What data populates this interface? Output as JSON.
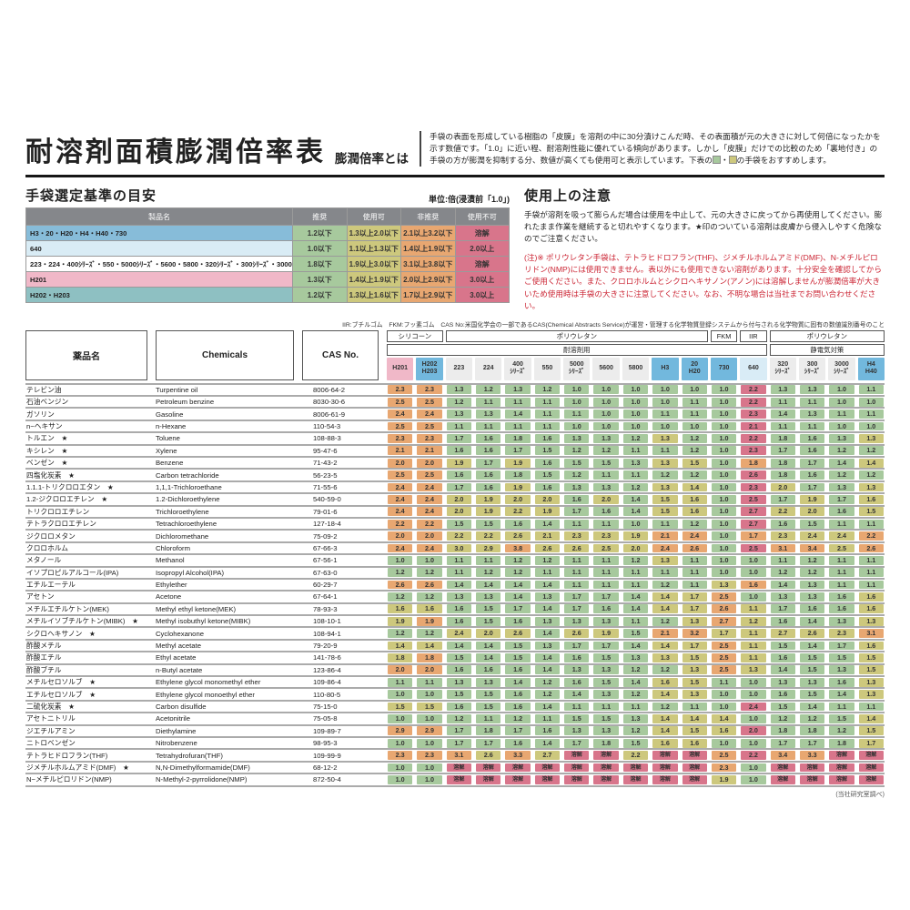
{
  "header": {
    "title": "耐溶剤面積膨潤倍率表",
    "subtitle": "膨潤倍率とは",
    "desc_part1": "手袋の表面を形成している樹脂の「皮膜」を溶剤の中に30分漬けこんだ時、その表面積が元の大きさに対して何倍になったかを示す数値です。「1.0」に近い程、耐溶剤性能に優れている傾向があります。しかし「皮膜」だけでの比較のため「裏地付き」の手袋の方が膨潤を抑制する分、数値が高くても使用可と表示しています。下表の",
    "desc_sep": "・",
    "desc_part2": "の手袋をおすすめします。"
  },
  "criteria": {
    "heading": "手袋選定基準の目安",
    "unit_label": "単位:倍(浸漬前「1.0」)",
    "headers": [
      "製品名",
      "推奨",
      "使用可",
      "非推奨",
      "使用不可"
    ],
    "rows": [
      {
        "name": "H3・20・H20・H4・H40・730",
        "name_bg": "#87bcd9",
        "values": [
          "1.2以下",
          "1.3以上2.0以下",
          "2.1以上3.2以下",
          "溶解"
        ]
      },
      {
        "name": "640",
        "name_bg": "#d9ecf5",
        "values": [
          "1.0以下",
          "1.1以上1.3以下",
          "1.4以上1.9以下",
          "2.0以上"
        ]
      },
      {
        "name": "223・224・400ｼﾘｰｽﾞ・550・5000ｼﾘｰｽﾞ・5600・5800・320ｼﾘｰｽﾞ・300ｼﾘｰｽﾞ・3000ｼﾘｰｽﾞ",
        "name_bg": "#ffffff",
        "values": [
          "1.8以下",
          "1.9以上3.0以下",
          "3.1以上3.8以下",
          "溶解"
        ]
      },
      {
        "name": "H201",
        "name_bg": "#f0b8c8",
        "values": [
          "1.3以下",
          "1.4以上1.9以下",
          "2.0以上2.9以下",
          "3.0以上"
        ]
      },
      {
        "name": "H202・H203",
        "name_bg": "#8ec0c2",
        "values": [
          "1.2以下",
          "1.3以上1.6以下",
          "1.7以上2.9以下",
          "3.0以上"
        ]
      }
    ]
  },
  "notice": {
    "heading": "使用上の注意",
    "text": "手袋が溶剤を吸って膨らんだ場合は使用を中止して、元の大きさに戻ってから再使用してください。膨れたまま作業を継続すると切れやすくなります。★印のついている溶剤は皮膚から侵入しやすく危険なのでご注意ください。",
    "warning": "(注)※ ポリウレタン手袋は、テトラヒドロフラン(THF)、ジメチルホルムアミド(DMF)、N-メチルピロリドン(NMP)には使用できません。表以外にも使用できない溶剤があります。十分安全を確認してからご使用ください。また、クロロホルムとシクロヘキサノン(アノン)には溶解しませんが膨潤倍率が大きいため使用時は手袋の大きさに注意してください。なお、不明な場合は当社までお問い合わせください。"
  },
  "abbrev_note": "IIR:ブチルゴム　FKM:フッ素ゴム　CAS No:米国化学会の一部であるCAS(Chemical Abstracts Service)が運営・管理する化学物質登録システムから付与される化学物質に固有の数値識別番号のこと",
  "table": {
    "left_headers": [
      "薬品名",
      "Chemicals",
      "CAS No."
    ],
    "material_bands": [
      {
        "label": "シリコーン",
        "span": 2
      },
      {
        "label": "ポリウレタン",
        "span": 9
      },
      {
        "label": "FKM",
        "span": 1
      },
      {
        "label": "IIR",
        "span": 1
      },
      {
        "label": "ポリウレタン",
        "span": 4
      }
    ],
    "usage_bands": [
      {
        "label": "耐溶剤用",
        "span": 13
      },
      {
        "label": "静電気対策",
        "span": 4
      }
    ],
    "columns": [
      {
        "label": "H201",
        "bg": "#f0b8c8",
        "grade": "h201"
      },
      {
        "label": "H202\nH203",
        "bg": "#72b8dd",
        "grade": "h202"
      },
      {
        "label": "223",
        "bg": "#ececec",
        "grade": "std"
      },
      {
        "label": "224",
        "bg": "#ececec",
        "grade": "std"
      },
      {
        "label": "400\nｼﾘｰｽﾞ",
        "bg": "#ececec",
        "grade": "std"
      },
      {
        "label": "550",
        "bg": "#ececec",
        "grade": "std"
      },
      {
        "label": "5000\nｼﾘｰｽﾞ",
        "bg": "#ececec",
        "grade": "std"
      },
      {
        "label": "5600",
        "bg": "#ececec",
        "grade": "std"
      },
      {
        "label": "5800",
        "bg": "#ececec",
        "grade": "std"
      },
      {
        "label": "H3",
        "bg": "#72b8dd",
        "grade": "blue"
      },
      {
        "label": "20\nH20",
        "bg": "#72b8dd",
        "grade": "blue"
      },
      {
        "label": "730",
        "bg": "#72b8dd",
        "grade": "blue"
      },
      {
        "label": "640",
        "bg": "#d9ecf6",
        "grade": "g640"
      },
      {
        "label": "320\nｼﾘｰｽﾞ",
        "bg": "#ececec",
        "grade": "std"
      },
      {
        "label": "300\nｼﾘｰｽﾞ",
        "bg": "#ececec",
        "grade": "std"
      },
      {
        "label": "3000\nｼﾘｰｽﾞ",
        "bg": "#ececec",
        "grade": "std"
      },
      {
        "label": "H4\nH40",
        "bg": "#72b8dd",
        "grade": "blue"
      }
    ],
    "grades": {
      "h201": [
        1.3,
        1.9,
        2.9
      ],
      "h202": [
        1.2,
        1.6,
        2.9
      ],
      "std": [
        1.8,
        3.0,
        3.8
      ],
      "blue": [
        1.2,
        2.0,
        3.2
      ],
      "g640": [
        1.0,
        1.3,
        1.9
      ]
    },
    "legend_colors": {
      "green": "#a7c99d",
      "yellow": "#cdc87d",
      "orange": "#e8a771",
      "red": "#d8758b"
    },
    "rows": [
      {
        "name": "テレビン油",
        "star": false,
        "chemical": "Turpentine oil",
        "cas": "8006-64-2",
        "values": [
          "2.3",
          "2.3",
          "1.3",
          "1.2",
          "1.3",
          "1.2",
          "1.0",
          "1.0",
          "1.0",
          "1.0",
          "1.0",
          "1.0",
          "2.2",
          "1.3",
          "1.3",
          "1.0",
          "1.1"
        ]
      },
      {
        "name": "石油ベンジン",
        "star": false,
        "chemical": "Petroleum benzine",
        "cas": "8030-30-6",
        "values": [
          "2.5",
          "2.5",
          "1.2",
          "1.1",
          "1.1",
          "1.1",
          "1.0",
          "1.0",
          "1.0",
          "1.0",
          "1.1",
          "1.0",
          "2.2",
          "1.1",
          "1.1",
          "1.0",
          "1.0"
        ]
      },
      {
        "name": "ガソリン",
        "star": false,
        "chemical": "Gasoline",
        "cas": "8006-61-9",
        "values": [
          "2.4",
          "2.4",
          "1.3",
          "1.3",
          "1.4",
          "1.1",
          "1.1",
          "1.0",
          "1.0",
          "1.1",
          "1.1",
          "1.0",
          "2.3",
          "1.4",
          "1.3",
          "1.1",
          "1.1"
        ]
      },
      {
        "name": "n−ヘキサン",
        "star": false,
        "chemical": "n-Hexane",
        "cas": "110-54-3",
        "values": [
          "2.5",
          "2.5",
          "1.1",
          "1.1",
          "1.1",
          "1.1",
          "1.0",
          "1.0",
          "1.0",
          "1.0",
          "1.0",
          "1.0",
          "2.1",
          "1.1",
          "1.1",
          "1.0",
          "1.0"
        ]
      },
      {
        "name": "トルエン",
        "star": true,
        "chemical": "Toluene",
        "cas": "108-88-3",
        "values": [
          "2.3",
          "2.3",
          "1.7",
          "1.6",
          "1.8",
          "1.6",
          "1.3",
          "1.3",
          "1.2",
          "1.3",
          "1.2",
          "1.0",
          "2.2",
          "1.8",
          "1.6",
          "1.3",
          "1.3"
        ]
      },
      {
        "name": "キシレン",
        "star": true,
        "chemical": "Xylene",
        "cas": "95-47-6",
        "values": [
          "2.1",
          "2.1",
          "1.6",
          "1.6",
          "1.7",
          "1.5",
          "1.2",
          "1.2",
          "1.1",
          "1.1",
          "1.2",
          "1.0",
          "2.3",
          "1.7",
          "1.6",
          "1.2",
          "1.2"
        ]
      },
      {
        "name": "ベンゼン",
        "star": true,
        "chemical": "Benzene",
        "cas": "71-43-2",
        "values": [
          "2.0",
          "2.0",
          "1.9",
          "1.7",
          "1.9",
          "1.6",
          "1.5",
          "1.5",
          "1.3",
          "1.3",
          "1.5",
          "1.0",
          "1.8",
          "1.8",
          "1.7",
          "1.4",
          "1.4"
        ]
      },
      {
        "name": "四塩化炭素",
        "star": true,
        "chemical": "Carbon tetrachloride",
        "cas": "56-23-5",
        "values": [
          "2.5",
          "2.5",
          "1.6",
          "1.6",
          "1.8",
          "1.5",
          "1.2",
          "1.1",
          "1.1",
          "1.2",
          "1.2",
          "1.0",
          "2.6",
          "1.8",
          "1.6",
          "1.2",
          "1.2"
        ]
      },
      {
        "name": "1.1.1-トリクロロエタン",
        "star": true,
        "chemical": "1,1,1-Trichloroethane",
        "cas": "71-55-6",
        "values": [
          "2.4",
          "2.4",
          "1.7",
          "1.6",
          "1.9",
          "1.6",
          "1.3",
          "1.3",
          "1.2",
          "1.3",
          "1.4",
          "1.0",
          "2.3",
          "2.0",
          "1.7",
          "1.3",
          "1.3"
        ]
      },
      {
        "name": "1.2-ジクロロエチレン",
        "star": true,
        "chemical": "1.2-Dichloroethylene",
        "cas": "540-59-0",
        "values": [
          "2.4",
          "2.4",
          "2.0",
          "1.9",
          "2.0",
          "2.0",
          "1.6",
          "2.0",
          "1.4",
          "1.5",
          "1.6",
          "1.0",
          "2.5",
          "1.7",
          "1.9",
          "1.7",
          "1.6"
        ]
      },
      {
        "name": "トリクロロエチレン",
        "star": false,
        "chemical": "Trichloroethylene",
        "cas": "79-01-6",
        "values": [
          "2.4",
          "2.4",
          "2.0",
          "1.9",
          "2.2",
          "1.9",
          "1.7",
          "1.6",
          "1.4",
          "1.5",
          "1.6",
          "1.0",
          "2.7",
          "2.2",
          "2.0",
          "1.6",
          "1.5"
        ]
      },
      {
        "name": "テトラクロロエチレン",
        "star": false,
        "chemical": "Tetrachloroethylene",
        "cas": "127-18-4",
        "values": [
          "2.2",
          "2.2",
          "1.5",
          "1.5",
          "1.6",
          "1.4",
          "1.1",
          "1.1",
          "1.0",
          "1.1",
          "1.2",
          "1.0",
          "2.7",
          "1.6",
          "1.5",
          "1.1",
          "1.1"
        ]
      },
      {
        "name": "ジクロロメタン",
        "star": false,
        "chemical": "Dichloromethane",
        "cas": "75-09-2",
        "values": [
          "2.0",
          "2.0",
          "2.2",
          "2.2",
          "2.6",
          "2.1",
          "2.3",
          "2.3",
          "1.9",
          "2.1",
          "2.4",
          "1.0",
          "1.7",
          "2.3",
          "2.4",
          "2.4",
          "2.2"
        ]
      },
      {
        "name": "クロロホルム",
        "star": false,
        "chemical": "Chloroform",
        "cas": "67-66-3",
        "values": [
          "2.4",
          "2.4",
          "3.0",
          "2.9",
          "3.8",
          "2.6",
          "2.6",
          "2.5",
          "2.0",
          "2.4",
          "2.6",
          "1.0",
          "2.5",
          "3.1",
          "3.4",
          "2.5",
          "2.6"
        ]
      },
      {
        "name": "メタノール",
        "star": false,
        "chemical": "Methanol",
        "cas": "67-56-1",
        "values": [
          "1.0",
          "1.0",
          "1.1",
          "1.1",
          "1.2",
          "1.2",
          "1.1",
          "1.1",
          "1.2",
          "1.3",
          "1.1",
          "1.0",
          "1.0",
          "1.1",
          "1.2",
          "1.1",
          "1.1"
        ]
      },
      {
        "name": "イソプロピルアルコール(IPA)",
        "star": false,
        "chemical": "Isopropyl Alcohol(IPA)",
        "cas": "67-63-0",
        "values": [
          "1.2",
          "1.2",
          "1.1",
          "1.2",
          "1.2",
          "1.1",
          "1.1",
          "1.1",
          "1.1",
          "1.1",
          "1.1",
          "1.0",
          "1.0",
          "1.2",
          "1.2",
          "1.1",
          "1.1"
        ]
      },
      {
        "name": "エチルエーテル",
        "star": false,
        "chemical": "Ethylether",
        "cas": "60-29-7",
        "values": [
          "2.6",
          "2.6",
          "1.4",
          "1.4",
          "1.4",
          "1.4",
          "1.1",
          "1.1",
          "1.1",
          "1.2",
          "1.1",
          "1.3",
          "1.6",
          "1.4",
          "1.3",
          "1.1",
          "1.1"
        ]
      },
      {
        "name": "アセトン",
        "star": false,
        "chemical": "Acetone",
        "cas": "67-64-1",
        "values": [
          "1.2",
          "1.2",
          "1.3",
          "1.3",
          "1.4",
          "1.3",
          "1.7",
          "1.7",
          "1.4",
          "1.4",
          "1.7",
          "2.5",
          "1.0",
          "1.3",
          "1.3",
          "1.6",
          "1.6"
        ]
      },
      {
        "name": "メチルエチルケトン(MEK)",
        "star": false,
        "chemical": "Methyl ethyl ketone(MEK)",
        "cas": "78-93-3",
        "values": [
          "1.6",
          "1.6",
          "1.6",
          "1.5",
          "1.7",
          "1.4",
          "1.7",
          "1.6",
          "1.4",
          "1.4",
          "1.7",
          "2.6",
          "1.1",
          "1.7",
          "1.6",
          "1.6",
          "1.6"
        ]
      },
      {
        "name": "メチルイソブチルケトン(MIBK)",
        "star": true,
        "chemical": "Methyl isobuthyl ketone(MIBK)",
        "cas": "108-10-1",
        "values": [
          "1.9",
          "1.9",
          "1.6",
          "1.5",
          "1.6",
          "1.3",
          "1.3",
          "1.3",
          "1.1",
          "1.2",
          "1.3",
          "2.7",
          "1.2",
          "1.6",
          "1.4",
          "1.3",
          "1.3"
        ]
      },
      {
        "name": "シクロヘキサノン",
        "star": true,
        "chemical": "Cyclohexanone",
        "cas": "108-94-1",
        "values": [
          "1.2",
          "1.2",
          "2.4",
          "2.0",
          "2.6",
          "1.4",
          "2.6",
          "1.9",
          "1.5",
          "2.1",
          "3.2",
          "1.7",
          "1.1",
          "2.7",
          "2.6",
          "2.3",
          "3.1"
        ]
      },
      {
        "name": "酢酸メチル",
        "star": false,
        "chemical": "Methyl acetate",
        "cas": "79-20-9",
        "values": [
          "1.4",
          "1.4",
          "1.4",
          "1.4",
          "1.5",
          "1.3",
          "1.7",
          "1.7",
          "1.4",
          "1.4",
          "1.7",
          "2.5",
          "1.1",
          "1.5",
          "1.4",
          "1.7",
          "1.6"
        ]
      },
      {
        "name": "酢酸エチル",
        "star": false,
        "chemical": "Ethyl acetate",
        "cas": "141-78-6",
        "values": [
          "1.8",
          "1.8",
          "1.5",
          "1.4",
          "1.5",
          "1.4",
          "1.6",
          "1.5",
          "1.3",
          "1.3",
          "1.5",
          "2.5",
          "1.1",
          "1.6",
          "1.5",
          "1.5",
          "1.5"
        ]
      },
      {
        "name": "酢酸ブチル",
        "star": false,
        "chemical": "n-Butyl acetate",
        "cas": "123-86-4",
        "values": [
          "2.0",
          "2.0",
          "1.6",
          "1.6",
          "1.6",
          "1.4",
          "1.3",
          "1.3",
          "1.2",
          "1.2",
          "1.3",
          "2.5",
          "1.3",
          "1.4",
          "1.5",
          "1.3",
          "1.5"
        ]
      },
      {
        "name": "メチルセロソルブ",
        "star": true,
        "chemical": "Ethylene glycol monomethyl ether",
        "cas": "109-86-4",
        "values": [
          "1.1",
          "1.1",
          "1.3",
          "1.3",
          "1.4",
          "1.2",
          "1.6",
          "1.5",
          "1.4",
          "1.6",
          "1.5",
          "1.1",
          "1.0",
          "1.3",
          "1.3",
          "1.6",
          "1.3"
        ]
      },
      {
        "name": "エチルセロソルブ",
        "star": true,
        "chemical": "Ethylene glycol monoethyl ether",
        "cas": "110-80-5",
        "values": [
          "1.0",
          "1.0",
          "1.5",
          "1.5",
          "1.6",
          "1.2",
          "1.4",
          "1.3",
          "1.2",
          "1.4",
          "1.3",
          "1.0",
          "1.0",
          "1.6",
          "1.5",
          "1.4",
          "1.3"
        ]
      },
      {
        "name": "二硫化炭素",
        "star": true,
        "chemical": "Carbon disulfide",
        "cas": "75-15-0",
        "values": [
          "1.5",
          "1.5",
          "1.6",
          "1.5",
          "1.6",
          "1.4",
          "1.1",
          "1.1",
          "1.1",
          "1.2",
          "1.1",
          "1.0",
          "2.4",
          "1.5",
          "1.4",
          "1.1",
          "1.1"
        ]
      },
      {
        "name": "アセトニトリル",
        "star": false,
        "chemical": "Acetonitrile",
        "cas": "75-05-8",
        "values": [
          "1.0",
          "1.0",
          "1.2",
          "1.1",
          "1.2",
          "1.1",
          "1.5",
          "1.5",
          "1.3",
          "1.4",
          "1.4",
          "1.4",
          "1.0",
          "1.2",
          "1.2",
          "1.5",
          "1.4"
        ]
      },
      {
        "name": "ジエチルアミン",
        "star": false,
        "chemical": "Diethylamine",
        "cas": "109-89-7",
        "values": [
          "2.9",
          "2.9",
          "1.7",
          "1.8",
          "1.7",
          "1.6",
          "1.3",
          "1.3",
          "1.2",
          "1.4",
          "1.5",
          "1.6",
          "2.0",
          "1.8",
          "1.8",
          "1.2",
          "1.5"
        ]
      },
      {
        "name": "ニトロベンゼン",
        "star": false,
        "chemical": "Nitrobenzene",
        "cas": "98-95-3",
        "values": [
          "1.0",
          "1.0",
          "1.7",
          "1.7",
          "1.6",
          "1.4",
          "1.7",
          "1.8",
          "1.5",
          "1.6",
          "1.6",
          "1.0",
          "1.0",
          "1.7",
          "1.7",
          "1.8",
          "1.7"
        ]
      },
      {
        "name": "テトラヒドロフラン(THF)",
        "star": false,
        "chemical": "Tetrahydrofuran(THF)",
        "cas": "109-99-9",
        "values": [
          "2.3",
          "2.3",
          "3.1",
          "2.6",
          "3.3",
          "2.7",
          "溶解",
          "溶解",
          "2.2",
          "溶解",
          "溶解",
          "2.5",
          "2.2",
          "3.4",
          "3.3",
          "溶解",
          "溶解"
        ]
      },
      {
        "name": "ジメチルホルムアミド(DMF)",
        "star": true,
        "chemical": "N,N-Dimethylformamide(DMF)",
        "cas": "68-12-2",
        "values": [
          "1.0",
          "1.0",
          "溶解",
          "溶解",
          "溶解",
          "溶解",
          "溶解",
          "溶解",
          "溶解",
          "溶解",
          "溶解",
          "2.3",
          "1.0",
          "溶解",
          "溶解",
          "溶解",
          "溶解"
        ]
      },
      {
        "name": "N−メチルピロリドン(NMP)",
        "star": false,
        "chemical": "N-Methyl-2-pyrrolidone(NMP)",
        "cas": "872-50-4",
        "values": [
          "1.0",
          "1.0",
          "溶解",
          "溶解",
          "溶解",
          "溶解",
          "溶解",
          "溶解",
          "溶解",
          "溶解",
          "溶解",
          "1.9",
          "1.0",
          "溶解",
          "溶解",
          "溶解",
          "溶解"
        ]
      }
    ],
    "footnote": "(当社研究室調べ)"
  }
}
